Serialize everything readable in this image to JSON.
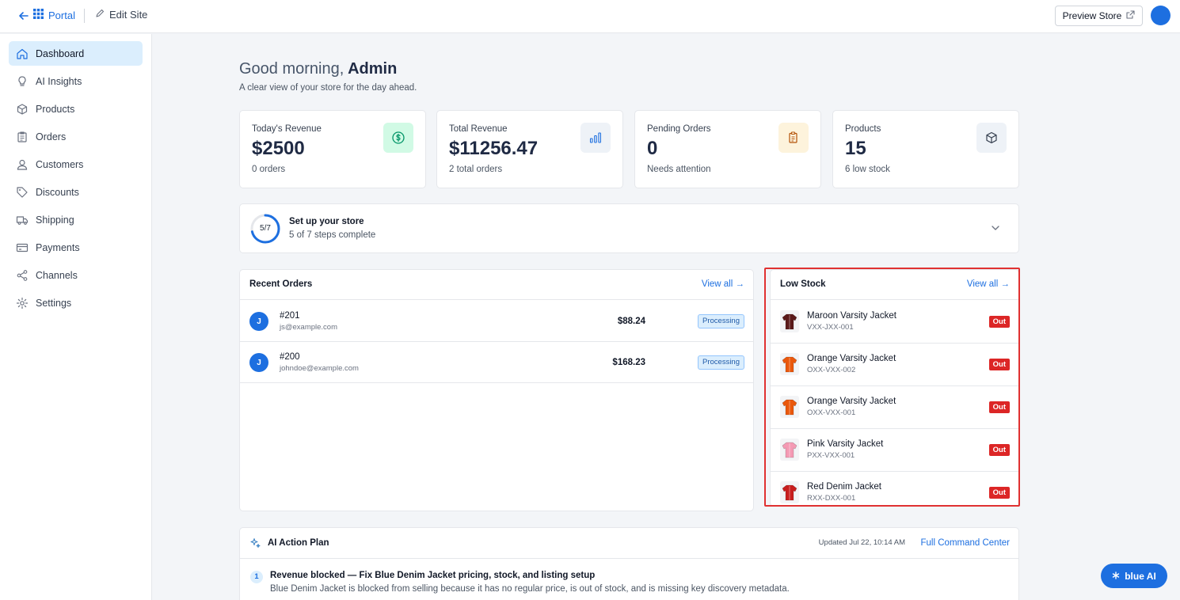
{
  "topbar": {
    "portal_label": "Portal",
    "edit_site_label": "Edit Site",
    "preview_store_label": "Preview Store"
  },
  "sidebar": {
    "items": [
      {
        "label": "Dashboard",
        "icon": "home-icon",
        "active": true
      },
      {
        "label": "AI Insights",
        "icon": "lightbulb-icon"
      },
      {
        "label": "Products",
        "icon": "box-icon"
      },
      {
        "label": "Orders",
        "icon": "clipboard-icon"
      },
      {
        "label": "Customers",
        "icon": "user-icon"
      },
      {
        "label": "Discounts",
        "icon": "tag-icon"
      },
      {
        "label": "Shipping",
        "icon": "truck-icon"
      },
      {
        "label": "Payments",
        "icon": "credit-card-icon"
      },
      {
        "label": "Channels",
        "icon": "share-icon"
      },
      {
        "label": "Settings",
        "icon": "gear-icon"
      }
    ]
  },
  "greeting": {
    "prefix": "Good morning,",
    "name": " Admin",
    "subtitle": "A clear view of your store for the day ahead."
  },
  "stats": [
    {
      "label": "Today's Revenue",
      "value": "$2500",
      "foot": "0 orders",
      "icon": "dollar-icon",
      "icon_bg": "#d1fae5",
      "icon_color": "#059669"
    },
    {
      "label": "Total Revenue",
      "value": "$11256.47",
      "foot": "2 total orders",
      "icon": "bar-chart-icon",
      "icon_bg": "#eef2f7",
      "icon_color": "#1d6fe0"
    },
    {
      "label": "Pending Orders",
      "value": "0",
      "foot": "Needs attention",
      "icon": "clipboard-icon",
      "icon_bg": "#fdf3dc",
      "icon_color": "#b45309"
    },
    {
      "label": "Products",
      "value": "15",
      "foot": "6 low stock",
      "icon": "cube-icon",
      "icon_bg": "#eef2f7",
      "icon_color": "#374151"
    }
  ],
  "setup": {
    "progress_text": "5/7",
    "progress": 0.714,
    "title": "Set up your store",
    "subtitle": "5 of 7 steps complete"
  },
  "recent_orders": {
    "title": "Recent Orders",
    "view_all": "View all →",
    "rows": [
      {
        "avatar": "J",
        "id": "#201",
        "email": "js@example.com",
        "amount": "$88.24",
        "status": "Processing"
      },
      {
        "avatar": "J",
        "id": "#200",
        "email": "johndoe@example.com",
        "amount": "$168.23",
        "status": "Processing"
      }
    ]
  },
  "low_stock": {
    "title": "Low Stock",
    "view_all": "View all →",
    "rows": [
      {
        "name": "Maroon Varsity Jacket",
        "sku": "VXX-JXX-001",
        "status": "Out",
        "color": "#5b1a1a"
      },
      {
        "name": "Orange Varsity Jacket",
        "sku": "OXX-VXX-002",
        "status": "Out",
        "color": "#ea580c"
      },
      {
        "name": "Orange Varsity Jacket",
        "sku": "OXX-VXX-001",
        "status": "Out",
        "color": "#ea580c"
      },
      {
        "name": "Pink Varsity Jacket",
        "sku": "PXX-VXX-001",
        "status": "Out",
        "color": "#f49ab4"
      },
      {
        "name": "Red Denim Jacket",
        "sku": "RXX-DXX-001",
        "status": "Out",
        "color": "#c81e1e"
      }
    ]
  },
  "ai_plan": {
    "title": "AI Action Plan",
    "updated": "Updated Jul 22, 10:14 AM",
    "link": "Full Command Center",
    "items": [
      {
        "num": "1",
        "title": "Revenue blocked — Fix Blue Denim Jacket pricing, stock, and listing setup",
        "desc": "Blue Denim Jacket is blocked from selling because it has no regular price, is out of stock, and is missing key discovery metadata."
      }
    ]
  },
  "assistant_button": {
    "label": "blue AI"
  }
}
